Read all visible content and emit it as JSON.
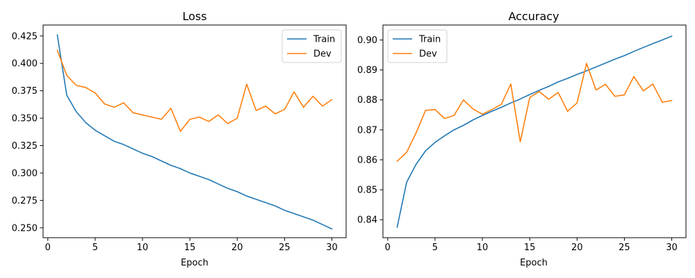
{
  "chart_data": [
    {
      "type": "line",
      "title": "Loss",
      "xlabel": "Epoch",
      "ylabel": "",
      "xlim": [
        -0.5,
        31.5
      ],
      "ylim": [
        0.241,
        0.435
      ],
      "xticks": [
        0,
        5,
        10,
        15,
        20,
        25,
        30
      ],
      "yticks": [
        0.25,
        0.275,
        0.3,
        0.325,
        0.35,
        0.375,
        0.4,
        0.425
      ],
      "ytick_labels": [
        "0.250",
        "0.275",
        "0.300",
        "0.325",
        "0.350",
        "0.375",
        "0.400",
        "0.425"
      ],
      "legend": "top-right",
      "grid": false,
      "x": [
        1,
        2,
        3,
        4,
        5,
        6,
        7,
        8,
        9,
        10,
        11,
        12,
        13,
        14,
        15,
        16,
        17,
        18,
        19,
        20,
        21,
        22,
        23,
        24,
        25,
        26,
        27,
        28,
        29,
        30
      ],
      "series": [
        {
          "name": "Train",
          "color": "#1f77b4",
          "values": [
            0.426,
            0.371,
            0.356,
            0.346,
            0.339,
            0.334,
            0.329,
            0.326,
            0.322,
            0.318,
            0.315,
            0.311,
            0.307,
            0.304,
            0.3,
            0.297,
            0.294,
            0.29,
            0.286,
            0.283,
            0.279,
            0.276,
            0.273,
            0.27,
            0.266,
            0.263,
            0.26,
            0.257,
            0.253,
            0.249
          ]
        },
        {
          "name": "Dev",
          "color": "#ff7f0e",
          "values": [
            0.412,
            0.389,
            0.38,
            0.378,
            0.373,
            0.363,
            0.36,
            0.364,
            0.355,
            0.353,
            0.351,
            0.349,
            0.359,
            0.338,
            0.349,
            0.351,
            0.347,
            0.353,
            0.345,
            0.35,
            0.381,
            0.357,
            0.361,
            0.354,
            0.358,
            0.374,
            0.36,
            0.37,
            0.361,
            0.367
          ]
        }
      ]
    },
    {
      "type": "line",
      "title": "Accuracy",
      "xlabel": "Epoch",
      "ylabel": "",
      "xlim": [
        -0.5,
        31.5
      ],
      "ylim": [
        0.834,
        0.905
      ],
      "xticks": [
        0,
        5,
        10,
        15,
        20,
        25,
        30
      ],
      "yticks": [
        0.84,
        0.85,
        0.86,
        0.87,
        0.88,
        0.89,
        0.9
      ],
      "ytick_labels": [
        "0.84",
        "0.85",
        "0.86",
        "0.87",
        "0.88",
        "0.89",
        "0.90"
      ],
      "legend": "top-left",
      "grid": false,
      "x": [
        1,
        2,
        3,
        4,
        5,
        6,
        7,
        8,
        9,
        10,
        11,
        12,
        13,
        14,
        15,
        16,
        17,
        18,
        19,
        20,
        21,
        22,
        23,
        24,
        25,
        26,
        27,
        28,
        29,
        30
      ],
      "series": [
        {
          "name": "Train",
          "color": "#1f77b4",
          "values": [
            0.8375,
            0.8525,
            0.8585,
            0.863,
            0.8658,
            0.868,
            0.87,
            0.8715,
            0.8733,
            0.8748,
            0.8762,
            0.8775,
            0.879,
            0.8803,
            0.8818,
            0.8832,
            0.8845,
            0.886,
            0.8872,
            0.8885,
            0.8897,
            0.891,
            0.8923,
            0.8936,
            0.8948,
            0.8962,
            0.8975,
            0.8988,
            0.9,
            0.9013
          ]
        },
        {
          "name": "Dev",
          "color": "#ff7f0e",
          "values": [
            0.8595,
            0.8625,
            0.869,
            0.8765,
            0.8768,
            0.8738,
            0.8748,
            0.88,
            0.877,
            0.8752,
            0.8768,
            0.8785,
            0.8853,
            0.866,
            0.8808,
            0.8828,
            0.8802,
            0.8825,
            0.8762,
            0.879,
            0.8922,
            0.8833,
            0.8852,
            0.8812,
            0.8817,
            0.8878,
            0.883,
            0.8853,
            0.8792,
            0.8798
          ]
        }
      ]
    }
  ]
}
